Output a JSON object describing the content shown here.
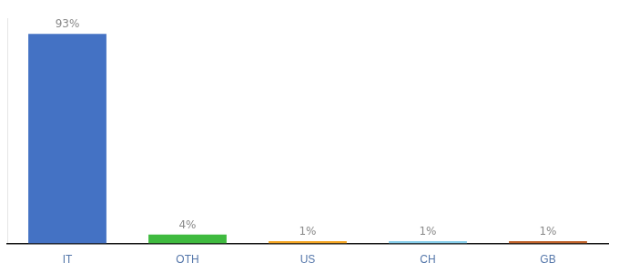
{
  "chart_data": {
    "type": "bar",
    "categories": [
      "IT",
      "OTH",
      "US",
      "CH",
      "GB"
    ],
    "values": [
      93,
      4,
      1,
      1,
      1
    ],
    "value_labels": [
      "93%",
      "4%",
      "1%",
      "1%",
      "1%"
    ],
    "colors": [
      "#4472c4",
      "#3fba3f",
      "#f5a623",
      "#87ceeb",
      "#c0632a"
    ],
    "ylim": [
      0,
      100
    ],
    "grid": false,
    "data_labels": true,
    "tick_labels": "x"
  }
}
